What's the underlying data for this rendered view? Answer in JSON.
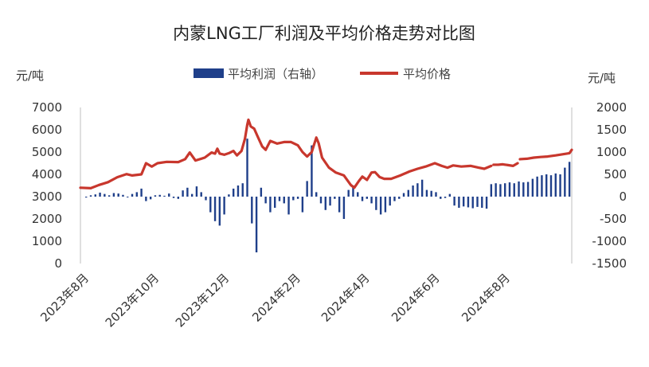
{
  "chart_data": {
    "type": "bar+line",
    "title": "内蒙LNG工厂利润及平均价格走势对比图",
    "left_unit": "元/吨",
    "right_unit": "元/吨",
    "colors": {
      "bar": "#1f3f8a",
      "line": "#c8372d"
    },
    "left_axis": {
      "min": 0,
      "max": 7000,
      "ticks": [
        "0",
        "1000",
        "2000",
        "3000",
        "4000",
        "5000",
        "6000",
        "7000"
      ]
    },
    "right_axis": {
      "min": -1500,
      "max": 2000,
      "ticks": [
        "-1500",
        "-1000",
        "-500",
        "0",
        "500",
        "1000",
        "1500",
        "2000"
      ]
    },
    "x_ticks": [
      "2023年8月",
      "2023年10月",
      "2023年12月",
      "2024年2月",
      "2024年4月",
      "2024年6月",
      "2024年8月"
    ],
    "x_range": [
      "2023-07-27",
      "2024-09-26"
    ],
    "legend_position": "top-center",
    "series": [
      {
        "name": "平均利润（右轴）",
        "kind": "bar",
        "axis": "right",
        "points": [
          [
            "2023-08-01",
            -20
          ],
          [
            "2023-08-05",
            30
          ],
          [
            "2023-08-09",
            50
          ],
          [
            "2023-08-13",
            90
          ],
          [
            "2023-08-17",
            60
          ],
          [
            "2023-08-21",
            30
          ],
          [
            "2023-08-25",
            80
          ],
          [
            "2023-08-29",
            70
          ],
          [
            "2023-09-02",
            40
          ],
          [
            "2023-09-06",
            -10
          ],
          [
            "2023-09-10",
            60
          ],
          [
            "2023-09-14",
            100
          ],
          [
            "2023-09-18",
            180
          ],
          [
            "2023-09-22",
            -100
          ],
          [
            "2023-09-26",
            -60
          ],
          [
            "2023-09-30",
            30
          ],
          [
            "2023-10-04",
            40
          ],
          [
            "2023-10-08",
            20
          ],
          [
            "2023-10-12",
            70
          ],
          [
            "2023-10-16",
            -30
          ],
          [
            "2023-10-20",
            -50
          ],
          [
            "2023-10-24",
            140
          ],
          [
            "2023-10-28",
            200
          ],
          [
            "2023-11-01",
            60
          ],
          [
            "2023-11-05",
            230
          ],
          [
            "2023-11-09",
            100
          ],
          [
            "2023-11-13",
            -80
          ],
          [
            "2023-11-17",
            -350
          ],
          [
            "2023-11-21",
            -550
          ],
          [
            "2023-11-25",
            -650
          ],
          [
            "2023-11-29",
            -400
          ],
          [
            "2023-12-03",
            50
          ],
          [
            "2023-12-07",
            180
          ],
          [
            "2023-12-11",
            250
          ],
          [
            "2023-12-15",
            300
          ],
          [
            "2023-12-19",
            1300
          ],
          [
            "2023-12-23",
            -600
          ],
          [
            "2023-12-27",
            -1250
          ],
          [
            "2023-12-31",
            200
          ],
          [
            "2024-01-04",
            -150
          ],
          [
            "2024-01-08",
            -350
          ],
          [
            "2024-01-12",
            -250
          ],
          [
            "2024-01-16",
            -100
          ],
          [
            "2024-01-20",
            -150
          ],
          [
            "2024-01-24",
            -400
          ],
          [
            "2024-01-28",
            -80
          ],
          [
            "2024-02-01",
            -50
          ],
          [
            "2024-02-05",
            -350
          ],
          [
            "2024-02-09",
            350
          ],
          [
            "2024-02-13",
            1150
          ],
          [
            "2024-02-17",
            100
          ],
          [
            "2024-02-21",
            -150
          ],
          [
            "2024-02-25",
            -300
          ],
          [
            "2024-02-29",
            -200
          ],
          [
            "2024-03-04",
            -50
          ],
          [
            "2024-03-08",
            -350
          ],
          [
            "2024-03-12",
            -500
          ],
          [
            "2024-03-16",
            150
          ],
          [
            "2024-03-20",
            250
          ],
          [
            "2024-03-24",
            100
          ],
          [
            "2024-03-28",
            -100
          ],
          [
            "2024-04-01",
            -50
          ],
          [
            "2024-04-05",
            -150
          ],
          [
            "2024-04-09",
            -300
          ],
          [
            "2024-04-13",
            -400
          ],
          [
            "2024-04-17",
            -350
          ],
          [
            "2024-04-21",
            -200
          ],
          [
            "2024-04-25",
            -100
          ],
          [
            "2024-04-29",
            -50
          ],
          [
            "2024-05-03",
            80
          ],
          [
            "2024-05-07",
            150
          ],
          [
            "2024-05-11",
            250
          ],
          [
            "2024-05-15",
            300
          ],
          [
            "2024-05-19",
            380
          ],
          [
            "2024-05-23",
            150
          ],
          [
            "2024-05-27",
            130
          ],
          [
            "2024-05-31",
            100
          ],
          [
            "2024-06-04",
            -50
          ],
          [
            "2024-06-08",
            -30
          ],
          [
            "2024-06-12",
            60
          ],
          [
            "2024-06-16",
            -200
          ],
          [
            "2024-06-20",
            -250
          ],
          [
            "2024-06-24",
            -220
          ],
          [
            "2024-06-28",
            -240
          ],
          [
            "2024-07-02",
            -260
          ],
          [
            "2024-07-06",
            -230
          ],
          [
            "2024-07-10",
            -250
          ],
          [
            "2024-07-14",
            -270
          ],
          [
            "2024-07-18",
            280
          ],
          [
            "2024-07-22",
            300
          ],
          [
            "2024-07-26",
            280
          ],
          [
            "2024-07-30",
            300
          ],
          [
            "2024-08-03",
            320
          ],
          [
            "2024-08-07",
            300
          ],
          [
            "2024-08-11",
            340
          ],
          [
            "2024-08-15",
            320
          ],
          [
            "2024-08-19",
            330
          ],
          [
            "2024-08-23",
            400
          ],
          [
            "2024-08-27",
            450
          ],
          [
            "2024-08-31",
            480
          ],
          [
            "2024-09-04",
            500
          ],
          [
            "2024-09-08",
            480
          ],
          [
            "2024-09-12",
            520
          ],
          [
            "2024-09-16",
            500
          ],
          [
            "2024-09-20",
            650
          ],
          [
            "2024-09-24",
            780
          ]
        ]
      },
      {
        "name": "平均价格",
        "kind": "line",
        "axis": "left",
        "segments": [
          [
            [
              "2023-07-27",
              3400
            ],
            [
              "2023-08-05",
              3380
            ],
            [
              "2023-08-12",
              3520
            ],
            [
              "2023-08-20",
              3650
            ],
            [
              "2023-08-28",
              3870
            ],
            [
              "2023-09-05",
              4010
            ],
            [
              "2023-09-10",
              3950
            ],
            [
              "2023-09-18",
              4000
            ],
            [
              "2023-09-22",
              4500
            ],
            [
              "2023-09-27",
              4350
            ],
            [
              "2023-10-02",
              4500
            ],
            [
              "2023-10-10",
              4560
            ],
            [
              "2023-10-20",
              4550
            ],
            [
              "2023-10-26",
              4680
            ],
            [
              "2023-10-30",
              4980
            ],
            [
              "2023-11-04",
              4620
            ],
            [
              "2023-11-12",
              4750
            ],
            [
              "2023-11-18",
              4980
            ],
            [
              "2023-11-21",
              4930
            ],
            [
              "2023-11-23",
              5150
            ],
            [
              "2023-11-25",
              4930
            ],
            [
              "2023-11-29",
              4880
            ],
            [
              "2023-12-03",
              4950
            ],
            [
              "2023-12-07",
              5050
            ],
            [
              "2023-12-10",
              4850
            ],
            [
              "2023-12-14",
              5050
            ],
            [
              "2023-12-17",
              5600
            ],
            [
              "2023-12-19",
              6230
            ],
            [
              "2023-12-20",
              6450
            ],
            [
              "2023-12-22",
              6150
            ],
            [
              "2023-12-25",
              6050
            ],
            [
              "2023-12-28",
              5700
            ],
            [
              "2024-01-01",
              5250
            ],
            [
              "2024-01-04",
              5100
            ],
            [
              "2024-01-08",
              5500
            ],
            [
              "2024-01-14",
              5380
            ],
            [
              "2024-01-20",
              5450
            ],
            [
              "2024-01-26",
              5450
            ],
            [
              "2024-02-01",
              5300
            ],
            [
              "2024-02-05",
              5000
            ],
            [
              "2024-02-09",
              4800
            ],
            [
              "2024-02-13",
              5000
            ],
            [
              "2024-02-17",
              5650
            ],
            [
              "2024-02-19",
              5400
            ],
            [
              "2024-02-22",
              4750
            ],
            [
              "2024-02-28",
              4300
            ],
            [
              "2024-03-05",
              4080
            ],
            [
              "2024-03-12",
              3950
            ],
            [
              "2024-03-18",
              3520
            ],
            [
              "2024-03-21",
              3400
            ],
            [
              "2024-03-25",
              3700
            ],
            [
              "2024-03-28",
              3900
            ],
            [
              "2024-04-01",
              3750
            ],
            [
              "2024-04-05",
              4080
            ],
            [
              "2024-04-08",
              4100
            ],
            [
              "2024-04-12",
              3880
            ],
            [
              "2024-04-16",
              3800
            ],
            [
              "2024-04-22",
              3800
            ],
            [
              "2024-04-30",
              3950
            ],
            [
              "2024-05-08",
              4130
            ],
            [
              "2024-05-15",
              4250
            ],
            [
              "2024-05-22",
              4350
            ],
            [
              "2024-05-30",
              4500
            ],
            [
              "2024-06-05",
              4380
            ],
            [
              "2024-06-10",
              4300
            ],
            [
              "2024-06-15",
              4400
            ],
            [
              "2024-06-22",
              4350
            ],
            [
              "2024-06-30",
              4380
            ],
            [
              "2024-07-07",
              4300
            ],
            [
              "2024-07-12",
              4250
            ],
            [
              "2024-07-18",
              4380
            ]
          ],
          [
            [
              "2024-07-20",
              4430
            ],
            [
              "2024-07-24",
              4430
            ],
            [
              "2024-07-28",
              4450
            ],
            [
              "2024-08-01",
              4420
            ],
            [
              "2024-08-06",
              4380
            ],
            [
              "2024-08-10",
              4500
            ]
          ],
          [
            [
              "2024-08-12",
              4680
            ],
            [
              "2024-08-18",
              4700
            ],
            [
              "2024-08-24",
              4750
            ],
            [
              "2024-08-30",
              4780
            ],
            [
              "2024-09-05",
              4800
            ],
            [
              "2024-09-12",
              4850
            ],
            [
              "2024-09-18",
              4900
            ],
            [
              "2024-09-24",
              4950
            ],
            [
              "2024-09-26",
              5100
            ]
          ]
        ]
      }
    ]
  }
}
